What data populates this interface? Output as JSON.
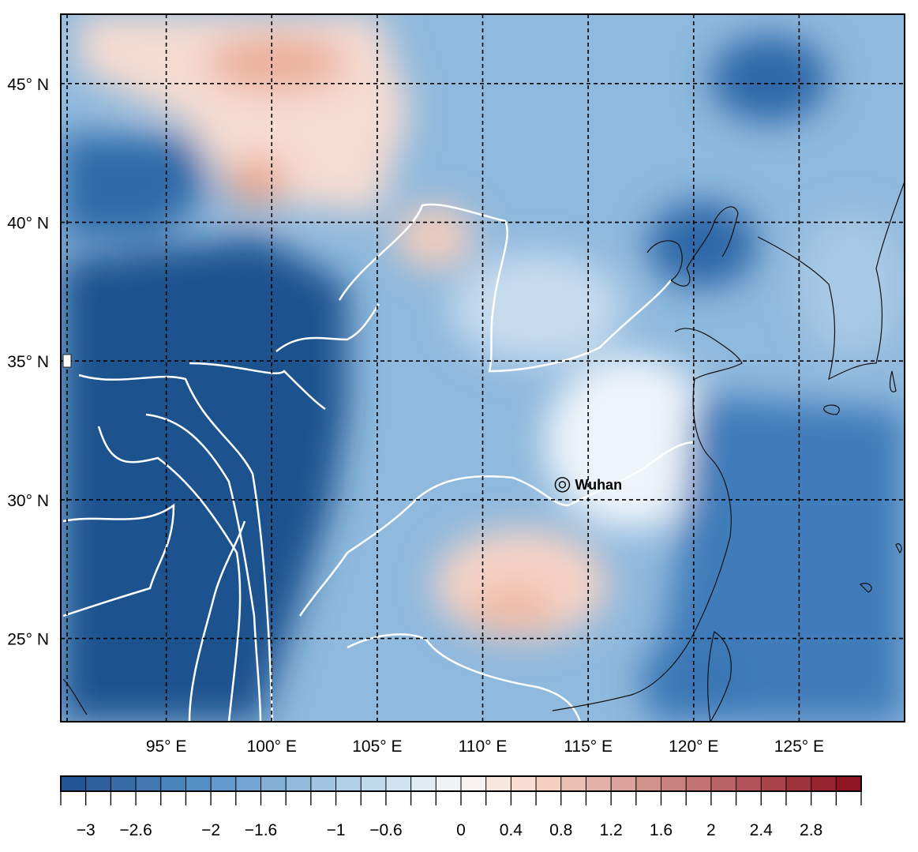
{
  "map": {
    "lon_labels": [
      "95° E",
      "100° E",
      "105° E",
      "110° E",
      "115° E",
      "120° E",
      "125° E"
    ],
    "lat_labels": [
      "45° N",
      "40° N",
      "35° N",
      "30° N",
      "25° N"
    ],
    "lon_range": [
      90,
      130
    ],
    "lat_range": [
      22,
      47.5
    ],
    "graticule_lons": [
      95,
      100,
      105,
      110,
      115,
      120,
      125
    ],
    "graticule_lats": [
      45,
      40,
      35,
      30,
      25
    ],
    "city": {
      "name": "Wuhan",
      "lon": 114.3,
      "lat": 30.6
    }
  },
  "colorbar": {
    "min": -3.2,
    "max": 3.2,
    "step": 0.2,
    "tick_values": [
      -3,
      -2.6,
      -2,
      -1.6,
      -1,
      -0.6,
      0,
      0.4,
      0.8,
      1.2,
      1.6,
      2,
      2.4,
      2.8
    ],
    "tick_labels": [
      "−3",
      "−2.6",
      "−2",
      "−1.6",
      "−1",
      "−0.6",
      "0",
      "0.4",
      "0.8",
      "1.2",
      "1.6",
      "2",
      "2.4",
      "2.8"
    ],
    "colors": {
      "strong_negative": "#1c4f8f",
      "mid_negative": "#5b95c8",
      "light_negative": "#c8dff0",
      "zero": "#f7f7f7",
      "light_positive": "#f8d8c8",
      "strong_positive": "#8b0d1c"
    }
  }
}
